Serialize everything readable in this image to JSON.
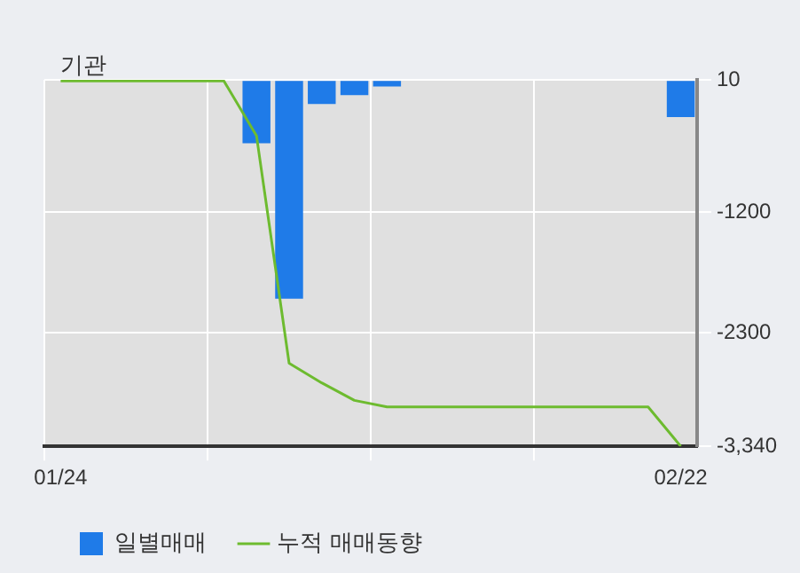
{
  "chart_data": {
    "type": "bar",
    "title": "기관",
    "categories": [
      "01/24",
      null,
      null,
      null,
      null,
      null,
      null,
      null,
      null,
      null,
      null,
      null,
      null,
      null,
      null,
      null,
      null,
      null,
      null,
      "02/22"
    ],
    "series": [
      {
        "name": "일별매매",
        "color": "#1f7be8",
        "values": [
          0,
          0,
          0,
          0,
          0,
          0,
          -570,
          -1990,
          -210,
          -130,
          -50,
          0,
          0,
          0,
          0,
          0,
          0,
          0,
          0,
          -330
        ]
      },
      {
        "name": "누적 매매동향",
        "type": "line",
        "color": "#6dbb2f",
        "values": [
          0,
          0,
          0,
          0,
          0,
          0,
          -500,
          -2580,
          -2760,
          -2920,
          -2980,
          -2980,
          -2980,
          -2980,
          -2980,
          -2980,
          -2980,
          -2980,
          -2980,
          -3340
        ]
      }
    ],
    "ylim": [
      -3340,
      10
    ],
    "yticks": [
      10,
      -1200,
      -2300,
      {
        "value": -3340,
        "label": "-3,340"
      }
    ],
    "grid": true,
    "legend": "bottom",
    "marker": "none"
  }
}
